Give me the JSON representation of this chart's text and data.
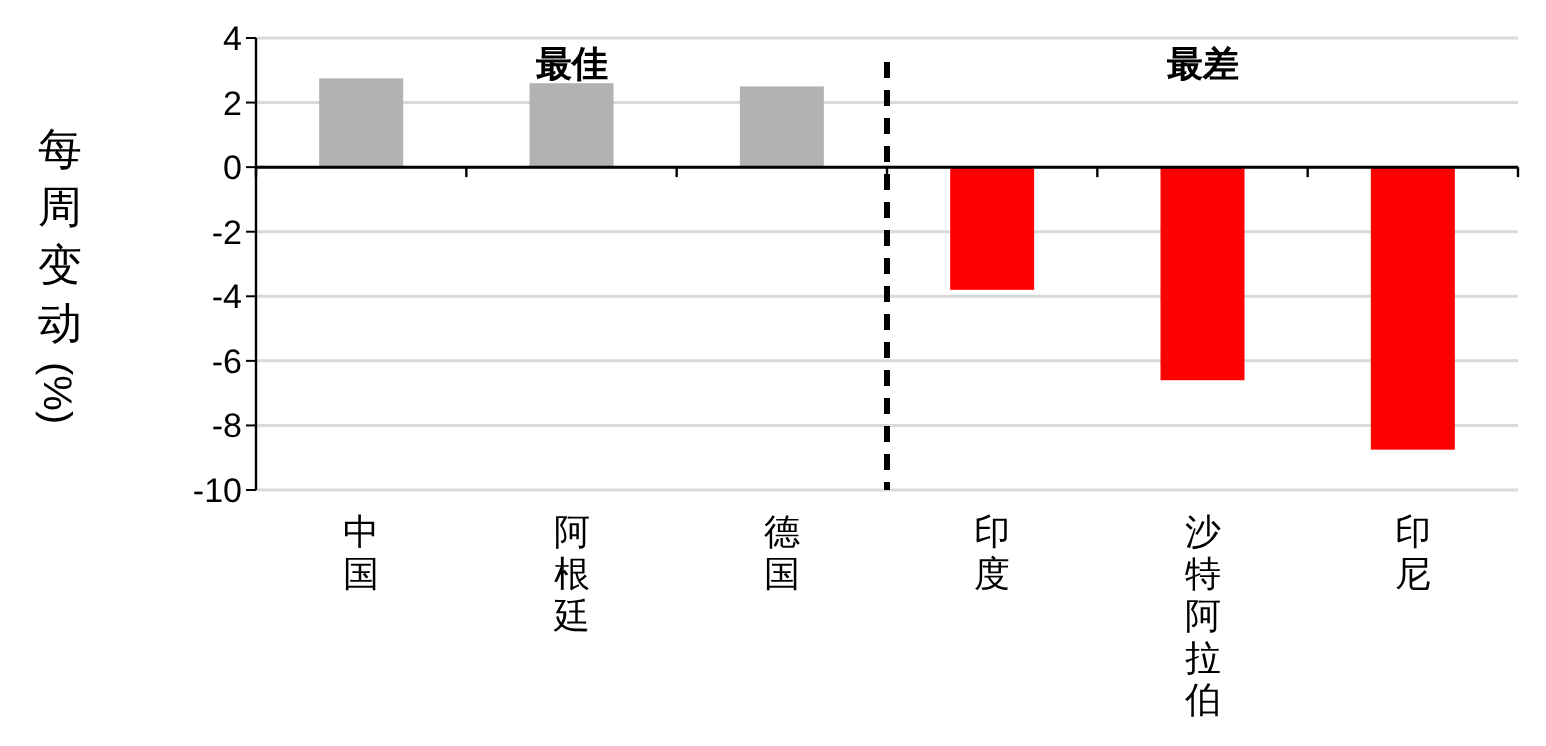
{
  "chart_data": {
    "type": "bar",
    "ylabel": "每周变动(%)",
    "categories": [
      "中国",
      "阿根廷",
      "德国",
      "印度",
      "沙特阿拉伯",
      "印尼"
    ],
    "values": [
      2.75,
      2.6,
      2.5,
      -3.8,
      -6.6,
      -8.75
    ],
    "colors": [
      "#b2b2b2",
      "#b2b2b2",
      "#b2b2b2",
      "#ff0000",
      "#ff0000",
      "#ff0000"
    ],
    "ylim": [
      -10,
      4
    ],
    "yticks": [
      -10,
      -8,
      -6,
      -4,
      -2,
      0,
      2,
      4
    ],
    "grid": "y",
    "annotations": [
      "最佳",
      "最差"
    ]
  }
}
